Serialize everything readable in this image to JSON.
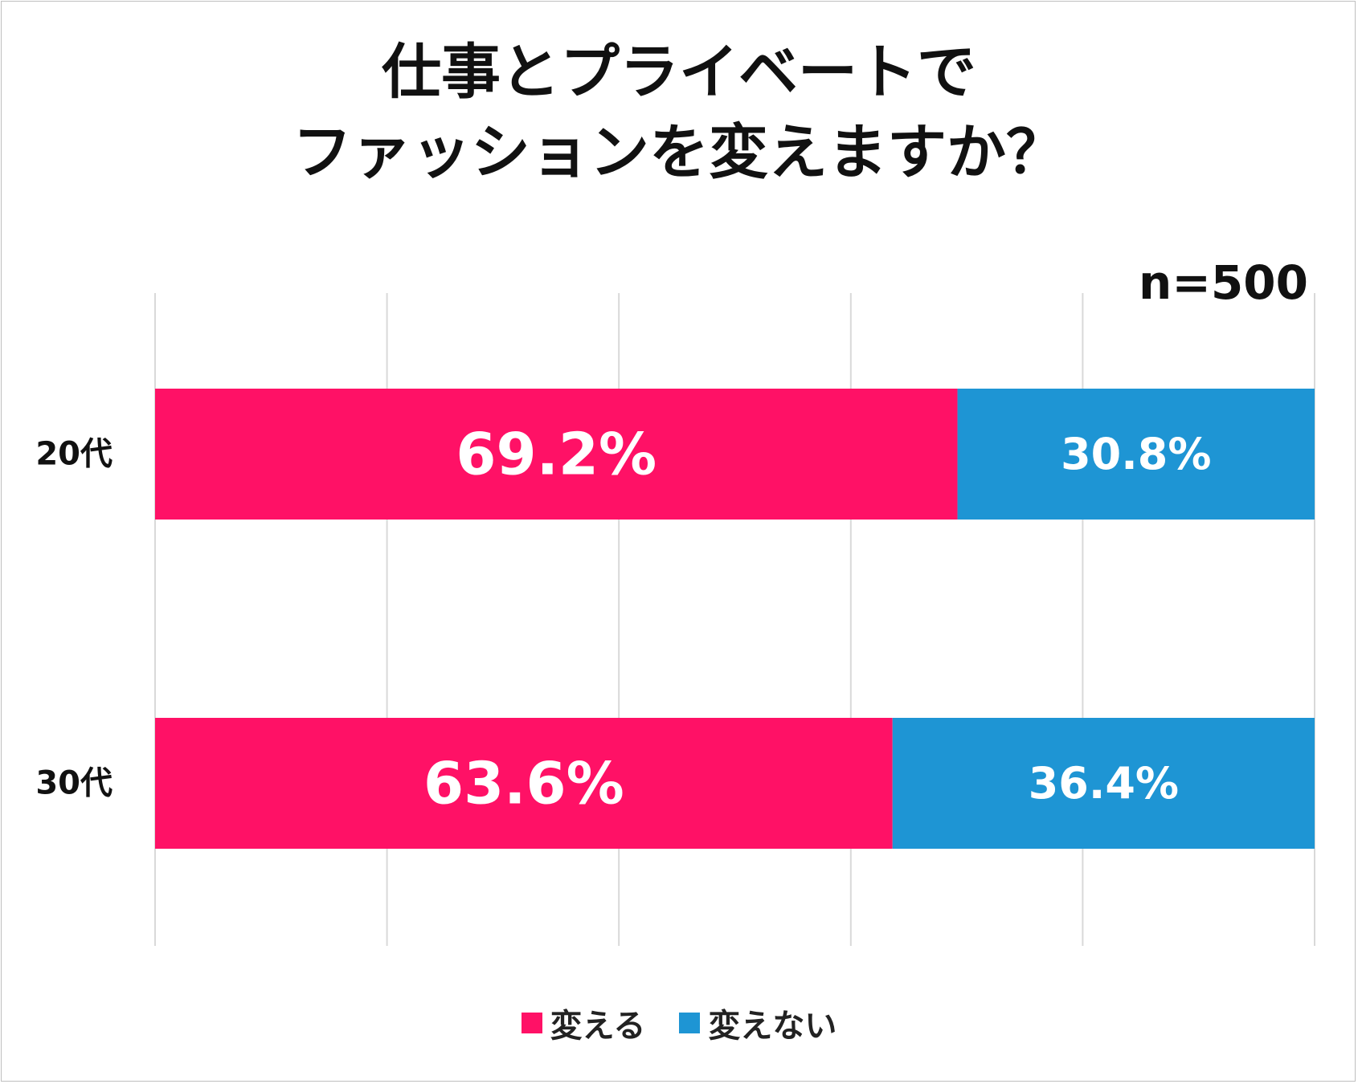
{
  "chart_data": {
    "type": "bar",
    "orientation": "horizontal",
    "stacked": true,
    "title_lines": [
      "仕事とプライベートで",
      "ファッションを変えますか？"
    ],
    "note": "n=500",
    "categories": [
      "20代",
      "30代"
    ],
    "series": [
      {
        "name": "変える",
        "values": [
          69.2,
          63.6
        ],
        "labels": [
          "69.2%",
          "63.6%"
        ],
        "color": "#ff1166"
      },
      {
        "name": "変えない",
        "values": [
          30.8,
          36.4
        ],
        "labels": [
          "30.8%",
          "36.4%"
        ],
        "color": "#1e95d4"
      }
    ],
    "xlim": [
      0,
      100
    ],
    "grid": true,
    "legend_position": "bottom"
  }
}
